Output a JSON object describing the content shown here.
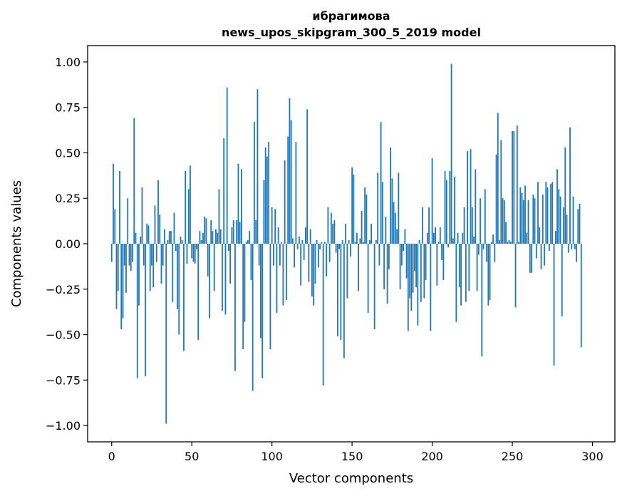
{
  "chart_data": {
    "type": "bar",
    "title": "ибрагимова",
    "subtitle": "news_upos_skipgram_300_5_2019 model",
    "xlabel": "Vector components",
    "ylabel": "Components values",
    "xlim": [
      -15,
      314
    ],
    "ylim": [
      -1.09,
      1.09
    ],
    "xticks": [
      0,
      50,
      100,
      150,
      200,
      250,
      300
    ],
    "xtick_labels": [
      "0",
      "50",
      "100",
      "150",
      "200",
      "250",
      "300"
    ],
    "yticks": [
      1.0,
      0.75,
      0.5,
      0.25,
      0.0,
      -0.25,
      -0.5,
      -0.75,
      -1.0
    ],
    "ytick_labels": [
      "1.00",
      "0.75",
      "0.50",
      "0.25",
      "0.00",
      "−0.25",
      "−0.50",
      "−0.75",
      "−1.00"
    ],
    "bar_color": "#1f77b4",
    "grid": false,
    "values": [
      -0.1,
      0.44,
      0.19,
      -0.36,
      -0.26,
      0.4,
      -0.47,
      -0.41,
      -0.12,
      -0.27,
      0.25,
      -0.12,
      -0.15,
      -0.1,
      0.69,
      0.06,
      -0.74,
      -0.34,
      0.04,
      0.31,
      -0.12,
      -0.73,
      0.11,
      0.1,
      -0.26,
      -0.12,
      -0.24,
      0.21,
      -0.1,
      0.35,
      0.16,
      -0.22,
      -0.12,
      0.08,
      -0.99,
      0.02,
      0.07,
      0.07,
      -0.32,
      0.17,
      -0.04,
      -0.36,
      -0.5,
      0.04,
      0.02,
      -0.59,
      0.4,
      -0.11,
      0.3,
      0.43,
      -0.08,
      -0.1,
      -0.11,
      -0.03,
      -0.53,
      0.07,
      0.02,
      0.06,
      0.15,
      0.14,
      -0.18,
      -0.41,
      0.13,
      0.07,
      -0.26,
      0.08,
      0.06,
      0.3,
      0.08,
      -0.37,
      0.58,
      -0.39,
      0.86,
      -0.04,
      -0.22,
      0.09,
      0.13,
      -0.7,
      0.13,
      0.44,
      0.12,
      0.41,
      -0.58,
      -0.43,
      0.01,
      0.02,
      0.07,
      -0.2,
      -0.81,
      0.67,
      0.13,
      0.85,
      -0.12,
      -0.52,
      -0.74,
      0.35,
      0.53,
      0.48,
      0.56,
      -0.58,
      0.2,
      -0.12,
      0.19,
      -0.38,
      0.09,
      -0.12,
      0.01,
      -0.34,
      0.46,
      -0.31,
      0.59,
      0.8,
      0.68,
      0.03,
      -0.13,
      0.56,
      -0.03,
      0.04,
      -0.23,
      0.02,
      -0.09,
      0.09,
      0.74,
      -0.21,
      0.08,
      -0.29,
      -0.34,
      -0.22,
      0.02,
      -0.13,
      -0.03,
      0.01,
      -0.78,
      0.01,
      -0.18,
      0.2,
      -0.1,
      0.17,
      0.11,
      0.13,
      -0.05,
      -0.51,
      -0.03,
      -0.53,
      0.02,
      -0.63,
      0.11,
      -0.3,
      0.02,
      -0.07,
      0.42,
      0.38,
      0.01,
      0.06,
      -0.26,
      0.03,
      0.18,
      0.01,
      0.31,
      0.27,
      -0.38,
      0.02,
      0.11,
      0.0,
      -0.47,
      0.02,
      0.39,
      -0.12,
      0.67,
      0.34,
      -0.25,
      0.15,
      -0.33,
      -0.14,
      0.53,
      0.36,
      0.23,
      0.17,
      0.08,
      0.39,
      -0.25,
      -0.12,
      -0.04,
      0.08,
      -0.19,
      -0.48,
      -0.3,
      -0.37,
      -0.27,
      -0.15,
      -0.24,
      -0.45,
      0.02,
      -0.32,
      0.2,
      -0.3,
      -0.2,
      0.06,
      0.2,
      -0.48,
      0.47,
      0.06,
      0.09,
      -0.23,
      0.01,
      0.09,
      -0.09,
      -0.2,
      0.4,
      0.35,
      -0.02,
      0.4,
      0.99,
      0.03,
      0.37,
      -0.43,
      0.06,
      -0.24,
      -0.34,
      0.06,
      0.2,
      -0.32,
      0.51,
      -0.26,
      0.52,
      0.2,
      0.04,
      0.41,
      -0.26,
      -0.06,
      0.25,
      -0.62,
      -0.03,
      0.3,
      -0.1,
      -0.34,
      -0.31,
      0.01,
      0.05,
      -0.1,
      0.49,
      0.72,
      0.02,
      0.57,
      0.25,
      0.24,
      0.12,
      0.01,
      0.02,
      0.01,
      0.62,
      0.62,
      -0.35,
      0.65,
      0.01,
      0.31,
      0.28,
      0.24,
      0.32,
      0.06,
      0.24,
      -0.16,
      -0.16,
      0.27,
      0.25,
      -0.08,
      0.34,
      0.09,
      -0.14,
      0.27,
      -0.12,
      0.34,
      0.31,
      -0.04,
      0.33,
      0.34,
      -0.67,
      0.07,
      0.41,
      0.3,
      0.26,
      -0.4,
      0.2,
      0.53,
      0.16,
      -0.05,
      0.64,
      -0.03,
      0.26,
      -0.03,
      -0.1,
      0.19,
      0.22,
      -0.57
    ]
  }
}
